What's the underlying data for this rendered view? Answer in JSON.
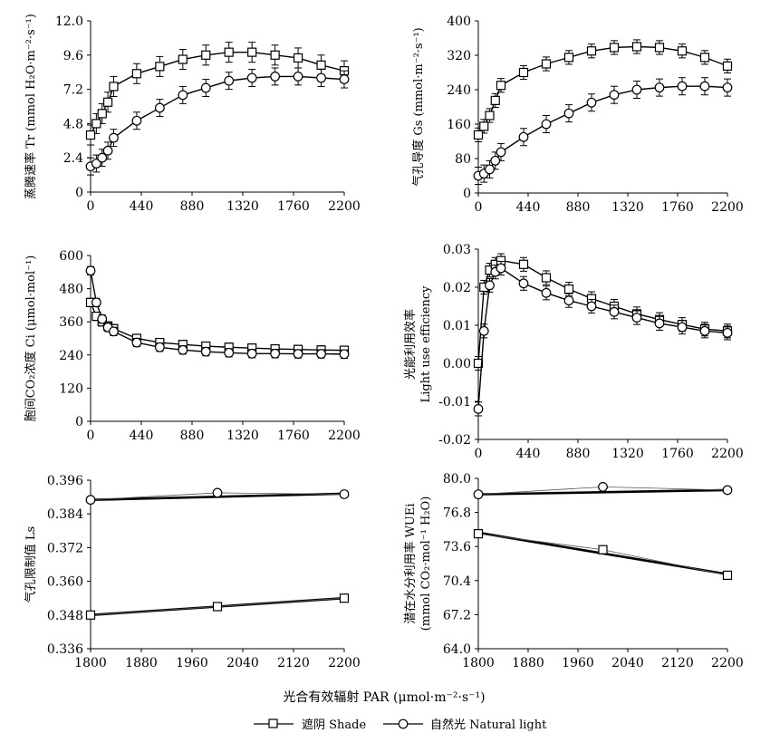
{
  "x_axis_label": "光合有效辐射 PAR (μmol·m⁻²·s⁻¹)",
  "legend": {
    "position": "bottom-center",
    "items": [
      {
        "label": "遮阴 Shade",
        "marker": "square"
      },
      {
        "label": "自然光 Natural light",
        "marker": "circle"
      }
    ]
  },
  "colors": {
    "line": "#000000",
    "marker_fill": "#ffffff"
  },
  "chart_data": [
    {
      "id": "tr",
      "type": "line",
      "ylabel_lines": [
        "蒸腾速率 Tr (mmol H₂O·m⁻²·s⁻¹)"
      ],
      "xlim": [
        0,
        2200
      ],
      "xticks": [
        0,
        440,
        880,
        1320,
        1760,
        2200
      ],
      "ylim": [
        0,
        12
      ],
      "yticks": [
        "0",
        "2.4",
        "4.8",
        "7.2",
        "9.6",
        "12.0"
      ],
      "x": [
        0,
        50,
        100,
        150,
        200,
        400,
        600,
        800,
        1000,
        1200,
        1400,
        1600,
        1800,
        2000,
        2200
      ],
      "series": [
        {
          "marker": "square",
          "legend_ref": 0,
          "values": [
            4.0,
            4.8,
            5.5,
            6.3,
            7.4,
            8.3,
            8.8,
            9.3,
            9.6,
            9.8,
            9.8,
            9.6,
            9.4,
            8.9,
            8.5
          ],
          "error": 0.7
        },
        {
          "marker": "circle",
          "legend_ref": 1,
          "values": [
            1.8,
            2.0,
            2.4,
            2.9,
            3.8,
            5.0,
            5.9,
            6.8,
            7.3,
            7.8,
            8.0,
            8.1,
            8.1,
            8.0,
            7.9
          ],
          "error": 0.6
        }
      ]
    },
    {
      "id": "gs",
      "type": "line",
      "ylabel_lines": [
        "气孔导度 Gs (mmol·m⁻²·s⁻¹)"
      ],
      "xlim": [
        0,
        2200
      ],
      "xticks": [
        0,
        440,
        880,
        1320,
        1760,
        2200
      ],
      "ylim": [
        0,
        400
      ],
      "yticks": [
        "0",
        "80",
        "160",
        "240",
        "320",
        "400"
      ],
      "x": [
        0,
        50,
        100,
        150,
        200,
        400,
        600,
        800,
        1000,
        1200,
        1400,
        1600,
        1800,
        2000,
        2200
      ],
      "series": [
        {
          "marker": "square",
          "legend_ref": 0,
          "values": [
            135,
            155,
            180,
            215,
            250,
            280,
            300,
            315,
            330,
            338,
            340,
            338,
            330,
            315,
            295
          ],
          "error": 16
        },
        {
          "marker": "circle",
          "legend_ref": 1,
          "values": [
            40,
            45,
            55,
            75,
            95,
            130,
            160,
            185,
            210,
            228,
            240,
            245,
            248,
            248,
            245
          ],
          "error": 20
        }
      ]
    },
    {
      "id": "ci",
      "type": "line",
      "ylabel_lines": [
        "胞间CO₂浓度 Ci (μmol·mol⁻¹)"
      ],
      "xlim": [
        0,
        2200
      ],
      "xticks": [
        0,
        440,
        880,
        1320,
        1760,
        2200
      ],
      "ylim": [
        0,
        600
      ],
      "yticks": [
        "0",
        "120",
        "240",
        "360",
        "480",
        "600"
      ],
      "x": [
        0,
        50,
        100,
        150,
        200,
        400,
        600,
        800,
        1000,
        1200,
        1400,
        1600,
        1800,
        2000,
        2200
      ],
      "series": [
        {
          "marker": "square",
          "legend_ref": 0,
          "values": [
            430,
            380,
            360,
            345,
            335,
            300,
            285,
            278,
            272,
            268,
            265,
            262,
            260,
            258,
            257
          ],
          "error": 15
        },
        {
          "marker": "circle",
          "legend_ref": 1,
          "values": [
            545,
            430,
            370,
            340,
            325,
            285,
            268,
            258,
            252,
            248,
            245,
            245,
            244,
            244,
            243
          ],
          "error": 15
        }
      ]
    },
    {
      "id": "lue",
      "type": "line",
      "ylabel_lines": [
        "光能利用效率",
        "Light use efficiency"
      ],
      "xlim": [
        0,
        2200
      ],
      "xticks": [
        0,
        440,
        880,
        1320,
        1760,
        2200
      ],
      "ylim": [
        -0.02,
        0.03
      ],
      "yticks": [
        "-0.02",
        "-0.01",
        "0.00",
        "0.01",
        "0.02",
        "0.03"
      ],
      "x": [
        0,
        50,
        100,
        150,
        200,
        400,
        600,
        800,
        1000,
        1200,
        1400,
        1600,
        1800,
        2000,
        2200
      ],
      "series": [
        {
          "marker": "square",
          "legend_ref": 0,
          "values": [
            0.0,
            0.02,
            0.0245,
            0.026,
            0.027,
            0.026,
            0.0225,
            0.0195,
            0.017,
            0.015,
            0.013,
            0.0115,
            0.0102,
            0.009,
            0.0085
          ],
          "error": 0.0018
        },
        {
          "marker": "circle",
          "legend_ref": 1,
          "values": [
            -0.012,
            0.0085,
            0.0205,
            0.024,
            0.025,
            0.021,
            0.0185,
            0.0165,
            0.015,
            0.0135,
            0.012,
            0.0105,
            0.0095,
            0.0085,
            0.008
          ],
          "error": 0.0018
        }
      ]
    },
    {
      "id": "ls",
      "type": "line",
      "ylabel_lines": [
        "气孔限制值 Ls"
      ],
      "xlim": [
        1800,
        2200
      ],
      "xticks": [
        1800,
        1880,
        1960,
        2040,
        2120,
        2200
      ],
      "ylim": [
        0.336,
        0.396
      ],
      "yticks": [
        "0.336",
        "0.348",
        "0.360",
        "0.372",
        "0.384",
        "0.396"
      ],
      "x": [
        1800,
        2000,
        2200
      ],
      "series": [
        {
          "marker": "square",
          "legend_ref": 0,
          "values": [
            0.348,
            0.351,
            0.354
          ],
          "trend": [
            0.348,
            0.354
          ]
        },
        {
          "marker": "circle",
          "legend_ref": 1,
          "values": [
            0.389,
            0.3915,
            0.391
          ],
          "trend": [
            0.389,
            0.3912
          ]
        }
      ]
    },
    {
      "id": "wue",
      "type": "line",
      "ylabel_lines": [
        "潜在水分利用率 WUEi",
        "(mmol CO₂·mol⁻¹ H₂O)"
      ],
      "xlim": [
        1800,
        2200
      ],
      "xticks": [
        1800,
        1880,
        1960,
        2040,
        2120,
        2200
      ],
      "ylim": [
        64.0,
        80.0
      ],
      "yticks": [
        "64.0",
        "67.2",
        "70.4",
        "73.6",
        "76.8",
        "80.0"
      ],
      "x": [
        1800,
        2000,
        2200
      ],
      "series": [
        {
          "marker": "square",
          "legend_ref": 0,
          "values": [
            74.8,
            73.3,
            70.9
          ],
          "trend": [
            74.9,
            71.0
          ]
        },
        {
          "marker": "circle",
          "legend_ref": 1,
          "values": [
            78.5,
            79.2,
            78.9
          ],
          "trend": [
            78.5,
            78.9
          ]
        }
      ]
    }
  ]
}
